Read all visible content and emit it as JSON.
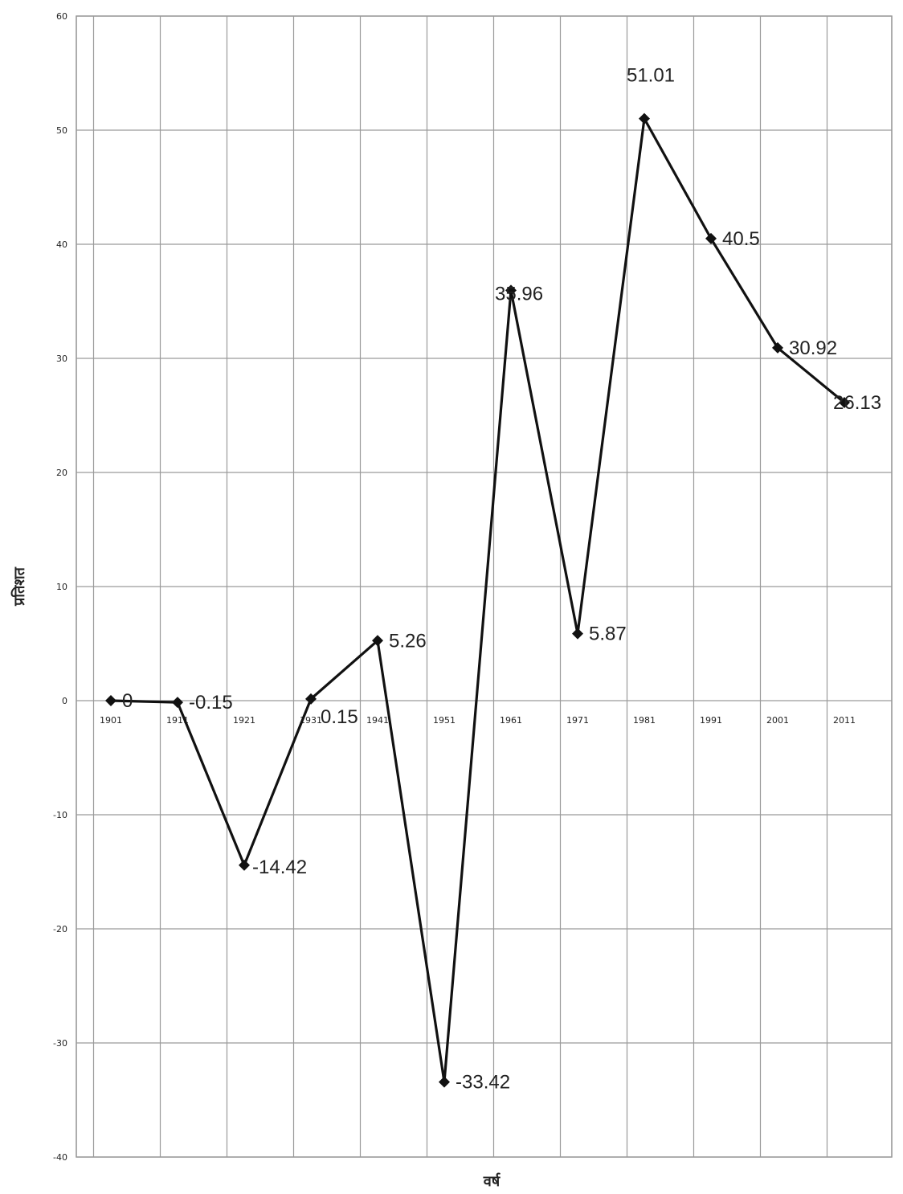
{
  "chart_data": {
    "type": "line",
    "title": "",
    "xlabel": "वर्ष",
    "ylabel": "प्रतिशत",
    "categories": [
      "1901",
      "1911",
      "1921",
      "1931",
      "1941",
      "1951",
      "1961",
      "1971",
      "1981",
      "1991",
      "2001",
      "2011"
    ],
    "x_tick_labels": [
      "1901",
      "1911",
      "1921",
      "1931",
      "1941",
      "1951",
      "1961",
      "1971",
      "1981",
      "1991",
      "2001",
      "2011"
    ],
    "series": [
      {
        "values": [
          0,
          -0.15,
          -14.42,
          0.15,
          5.26,
          -33.42,
          35.96,
          5.87,
          51.01,
          40.5,
          30.92,
          26.13
        ],
        "point_labels": [
          "0",
          "-0.15",
          "-14.42",
          "0.15",
          "5.26",
          "-33.42",
          "35.96",
          "5.87",
          "51.01",
          "40.5",
          "30.92",
          "26.13"
        ]
      }
    ],
    "ylim": [
      -40,
      60
    ],
    "y_ticks": [
      60,
      50,
      40,
      30,
      20,
      10,
      0,
      -10,
      -20,
      -30,
      -40
    ],
    "grid": true,
    "legend": "none",
    "colors": {
      "line": "#111111",
      "grid": "#9a9a9a",
      "text": "#222222"
    }
  }
}
